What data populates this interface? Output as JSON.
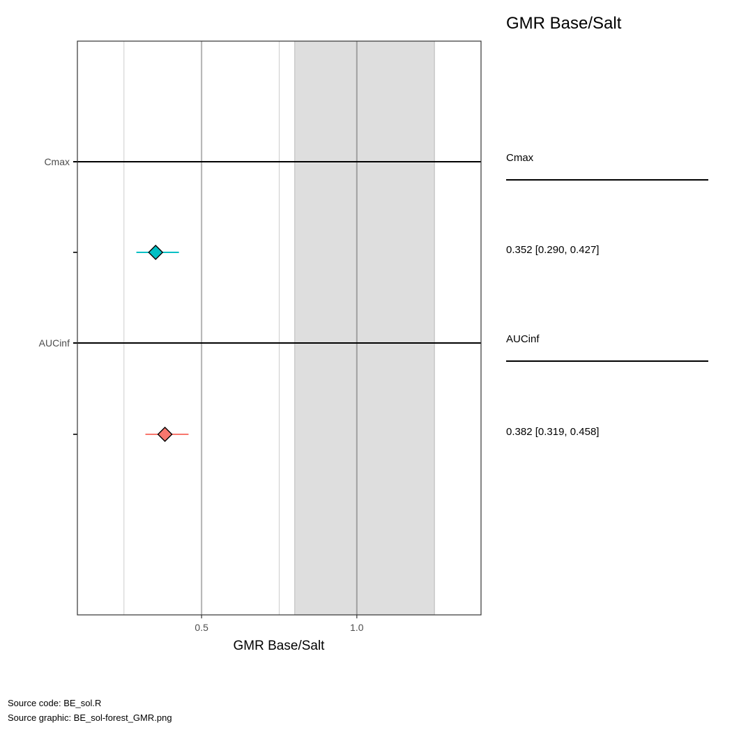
{
  "chart_data": {
    "type": "forest",
    "xlabel": "GMR Base/Salt",
    "xlim": [
      0.1,
      1.4
    ],
    "x_major_ticks": [
      0.5,
      1.0
    ],
    "x_tick_labels": [
      "0.5",
      "1.0"
    ],
    "x_minor_gridlines": [
      0.25,
      0.75
    ],
    "reference_line": 1.0,
    "equivalence_band": [
      0.8,
      1.25
    ],
    "grid": true,
    "groups": [
      {
        "label": "Cmax",
        "estimate": 0.352,
        "ci": [
          0.29,
          0.427
        ],
        "text": "0.352 [0.290, 0.427]",
        "color": "#00BFC4"
      },
      {
        "label": "AUCinf",
        "estimate": 0.382,
        "ci": [
          0.319,
          0.458
        ],
        "text": "0.382 [0.319, 0.458]",
        "color": "#F8766D"
      }
    ],
    "table_title": "GMR Base/Salt"
  },
  "colors": {
    "band": "#dedede",
    "major_grid": "#b3b3b3",
    "minor_grid": "#cccccc",
    "reference": "#a0a0a0",
    "panel_border": "#333333"
  },
  "captions": {
    "source_code": "Source code: BE_sol.R",
    "source_graphic": "Source graphic: BE_sol-forest_GMR.png"
  }
}
